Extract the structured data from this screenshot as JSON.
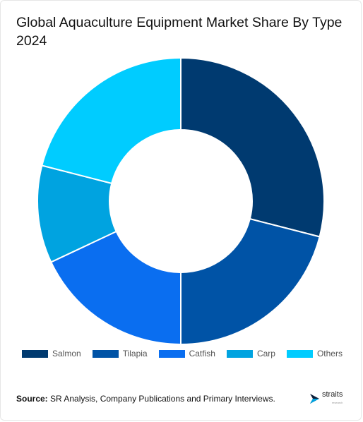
{
  "title": "Global Aquaculture Equipment Market Share By Type 2024",
  "chart_data": {
    "type": "pie",
    "donut": true,
    "categories": [
      "Salmon",
      "Tilapia",
      "Catfish",
      "Carp",
      "Others"
    ],
    "values": [
      29,
      21,
      18,
      11,
      21
    ],
    "colors": [
      "#003a70",
      "#0053a6",
      "#0a6ef0",
      "#00a3e0",
      "#00ccff"
    ],
    "legend_position": "bottom"
  },
  "source": {
    "label": "Source:",
    "text": " SR Analysis, Company Publications and Primary Interviews."
  },
  "brand": {
    "name": "straits",
    "sub": "research"
  }
}
